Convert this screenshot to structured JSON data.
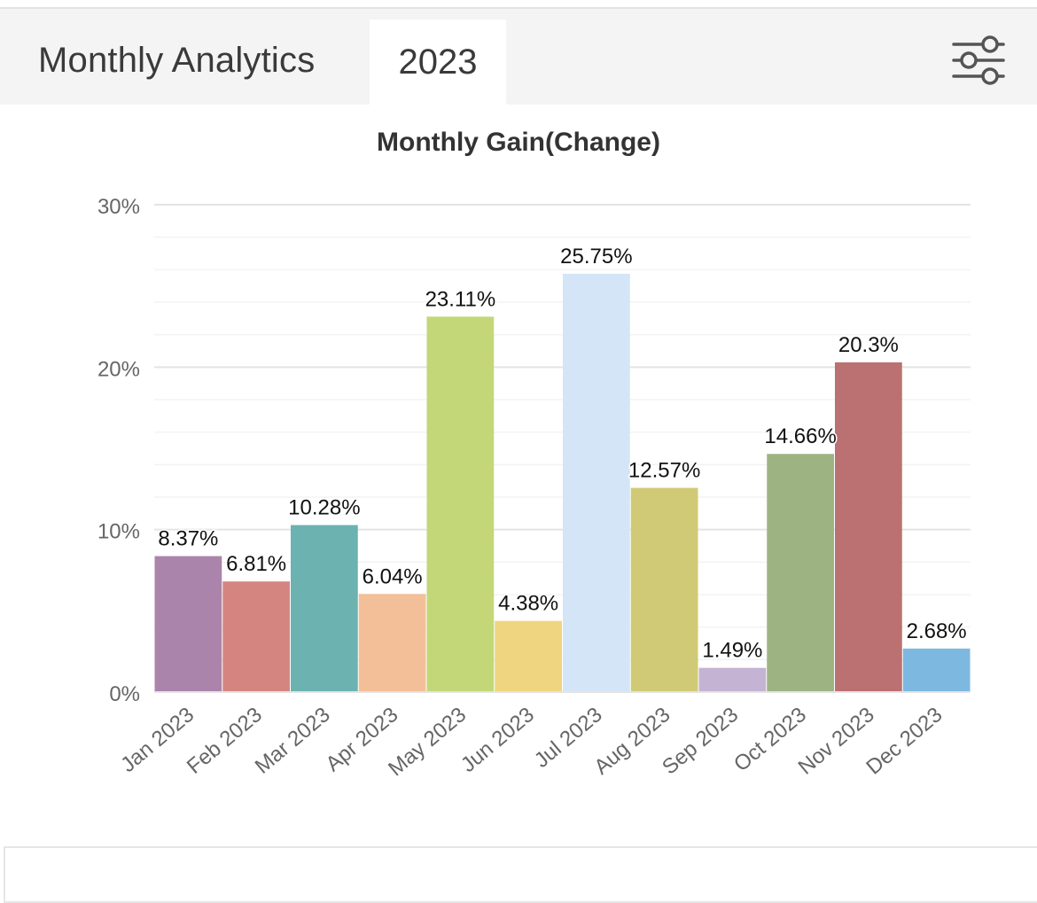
{
  "header": {
    "title": "Monthly Analytics",
    "year_tab": "2023",
    "filter_icon": "sliders-icon"
  },
  "chart_data": {
    "type": "bar",
    "title": "Monthly Gain(Change)",
    "xlabel": "",
    "ylabel": "",
    "ylim": [
      0,
      30
    ],
    "y_ticks": [
      "0%",
      "10%",
      "20%",
      "30%"
    ],
    "y_tick_values": [
      0,
      10,
      20,
      30
    ],
    "grid": true,
    "categories": [
      "Jan 2023",
      "Feb 2023",
      "Mar 2023",
      "Apr 2023",
      "May 2023",
      "Jun 2023",
      "Jul 2023",
      "Aug 2023",
      "Sep 2023",
      "Oct 2023",
      "Nov 2023",
      "Dec 2023"
    ],
    "values": [
      8.37,
      6.81,
      10.28,
      6.04,
      23.11,
      4.38,
      25.75,
      12.57,
      1.49,
      14.66,
      20.3,
      2.68
    ],
    "labels": [
      "8.37%",
      "6.81%",
      "10.28%",
      "6.04%",
      "23.11%",
      "4.38%",
      "25.75%",
      "12.57%",
      "1.49%",
      "14.66%",
      "20.3%",
      "2.68%"
    ],
    "colors": [
      "#ab84ab",
      "#d58580",
      "#6cb2b0",
      "#f3bf99",
      "#c3d779",
      "#efd57f",
      "#d4e5f8",
      "#d0ca76",
      "#c4b3d3",
      "#9db482",
      "#bb7171",
      "#7db8e0"
    ]
  }
}
